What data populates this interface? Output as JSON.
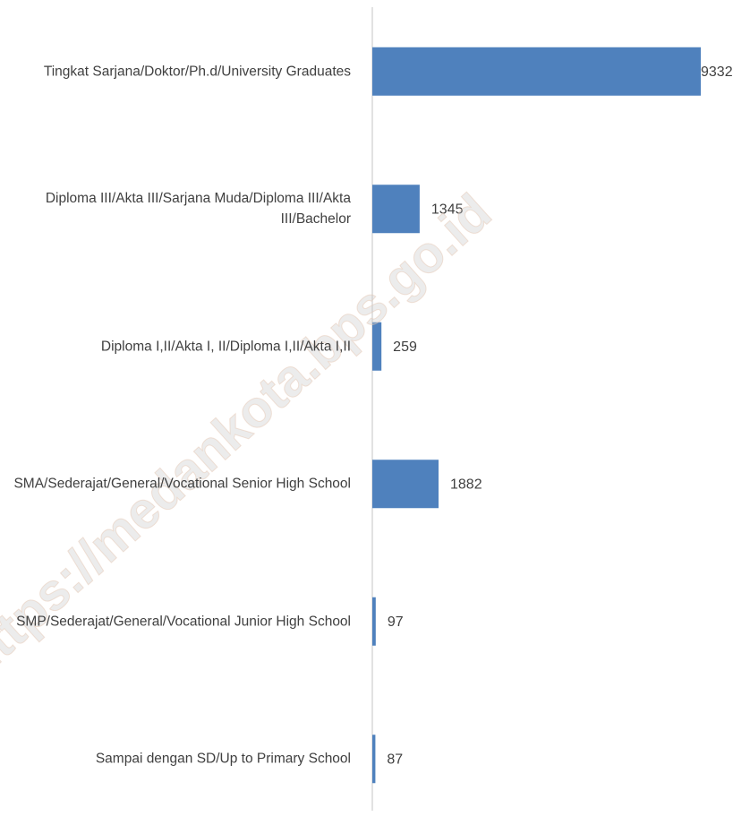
{
  "chart_data": {
    "type": "hbar",
    "categories": [
      "Tingkat Sarjana/Doktor/Ph.d/University Graduates",
      "Diploma III/Akta III/Sarjana Muda/Diploma III/Akta III/Bachelor",
      "Diploma I,II/Akta I, II/Diploma I,II/Akta I,II",
      "SMA/Sederajat/General/Vocational Senior High School",
      "SMP/Sederajat/General/Vocational Junior High School",
      "Sampai dengan SD/Up to Primary School"
    ],
    "values": [
      9332,
      1345,
      259,
      1882,
      97,
      87
    ],
    "color": "#4f81bd",
    "watermark": "https://medankota.bps.go.id"
  }
}
